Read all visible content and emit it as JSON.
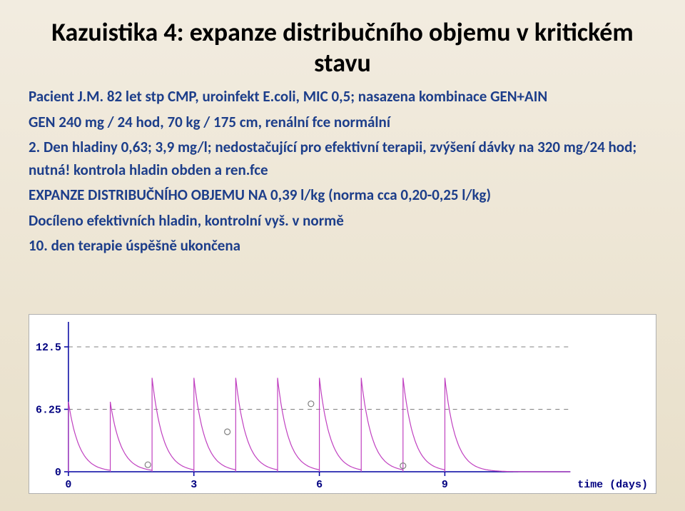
{
  "title": "Kazuistika 4: expanze distribučního objemu v kritickém stavu",
  "body_lines": [
    "Pacient J.M. 82 let stp CMP, uroinfekt E.coli, MIC 0,5; nasazena kombinace GEN+AIN",
    "GEN 240 mg / 24 hod, 70 kg / 175 cm, renální fce normální",
    "2. Den hladiny 0,63; 3,9 mg/l; nedostačující pro efektivní terapii, zvýšení dávky na 320 mg/24 hod; nutná! kontrola hladin obden a ren.fce",
    "EXPANZE DISTRIBUČNÍHO OBJEMU NA 0,39 l/kg (norma cca 0,20-0,25 l/kg)",
    "Docíleno efektivních hladin, kontrolní vyš. v normě",
    "10. den terapie úspěšně ukončena"
  ],
  "chart": {
    "type": "line",
    "background_color": "#ffffff",
    "axis_color": "#0000a0",
    "axis_font": "Courier New",
    "axis_fontsize": 15,
    "dash_color": "#808080",
    "curve_color": "#c040c0",
    "curve_width": 1.2,
    "marker_color": "#808080",
    "marker_radius": 4,
    "xlim": [
      0,
      12
    ],
    "ylim": [
      0,
      15
    ],
    "xticks": [
      0,
      3,
      6,
      9
    ],
    "xtick_labels": [
      "0",
      "3",
      "6",
      "9"
    ],
    "xlabel_right": "time (days)",
    "yticks": [
      0,
      6.25,
      12.5
    ],
    "ytick_labels": [
      "0",
      "6.25",
      "12.5"
    ],
    "dash_y": [
      6.25,
      12.5
    ],
    "doses": [
      0,
      1,
      2,
      3,
      4,
      5,
      6,
      7,
      8,
      9
    ],
    "markers": [
      {
        "x": 1.9,
        "y": 0.7
      },
      {
        "x": 3.8,
        "y": 4.0
      },
      {
        "x": 5.8,
        "y": 6.8
      },
      {
        "x": 8.0,
        "y": 0.6
      }
    ],
    "cmax_by_dose": [
      7.0,
      7.0,
      9.4,
      9.4,
      9.4,
      9.4,
      9.4,
      9.4,
      9.4,
      9.4
    ],
    "decay_halflife_days": 0.18
  }
}
